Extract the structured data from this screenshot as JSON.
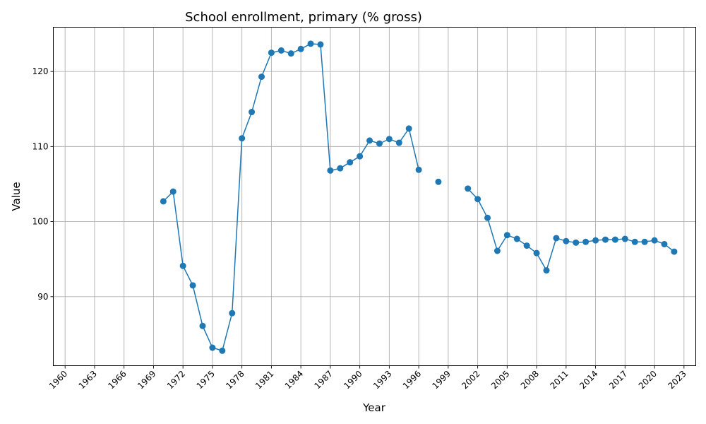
{
  "chart_data": {
    "type": "line",
    "title": "School enrollment, primary (% gross)",
    "xlabel": "Year",
    "ylabel": "Value",
    "xlim": [
      1958.8,
      2024.2
    ],
    "ylim": [
      80.8,
      125.9
    ],
    "x_ticks": [
      1960,
      1963,
      1966,
      1969,
      1972,
      1975,
      1978,
      1981,
      1984,
      1987,
      1990,
      1993,
      1996,
      1999,
      2002,
      2005,
      2008,
      2011,
      2014,
      2017,
      2020,
      2023
    ],
    "y_ticks": [
      90,
      100,
      110,
      120
    ],
    "grid": true,
    "color": "#1f77b4",
    "series": [
      {
        "x": [
          1970,
          1971,
          1972,
          1973,
          1974,
          1975,
          1976,
          1977,
          1978,
          1979,
          1980,
          1981,
          1982,
          1983,
          1984,
          1985,
          1986,
          1987,
          1988,
          1989,
          1990,
          1991,
          1992,
          1993,
          1994,
          1995,
          1996,
          1997,
          1998,
          1999,
          2000,
          2001,
          2002,
          2003,
          2004,
          2005,
          2006,
          2007,
          2008,
          2009,
          2010,
          2011,
          2012,
          2013,
          2014,
          2015,
          2016,
          2017,
          2018,
          2019,
          2020,
          2021,
          2022
        ],
        "values": [
          102.7,
          104.0,
          94.1,
          91.5,
          86.1,
          83.2,
          82.8,
          87.8,
          111.1,
          114.6,
          119.3,
          122.5,
          122.8,
          122.4,
          123.0,
          123.7,
          123.6,
          106.8,
          107.1,
          107.9,
          108.7,
          110.8,
          110.4,
          111.0,
          110.5,
          112.4,
          106.9,
          null,
          105.3,
          null,
          null,
          104.4,
          103.0,
          100.5,
          96.1,
          98.2,
          97.7,
          96.8,
          95.8,
          93.5,
          97.8,
          97.4,
          97.2,
          97.3,
          97.5,
          97.6,
          97.6,
          97.7,
          97.3,
          97.3,
          97.5,
          97.0,
          96.0
        ]
      }
    ]
  }
}
